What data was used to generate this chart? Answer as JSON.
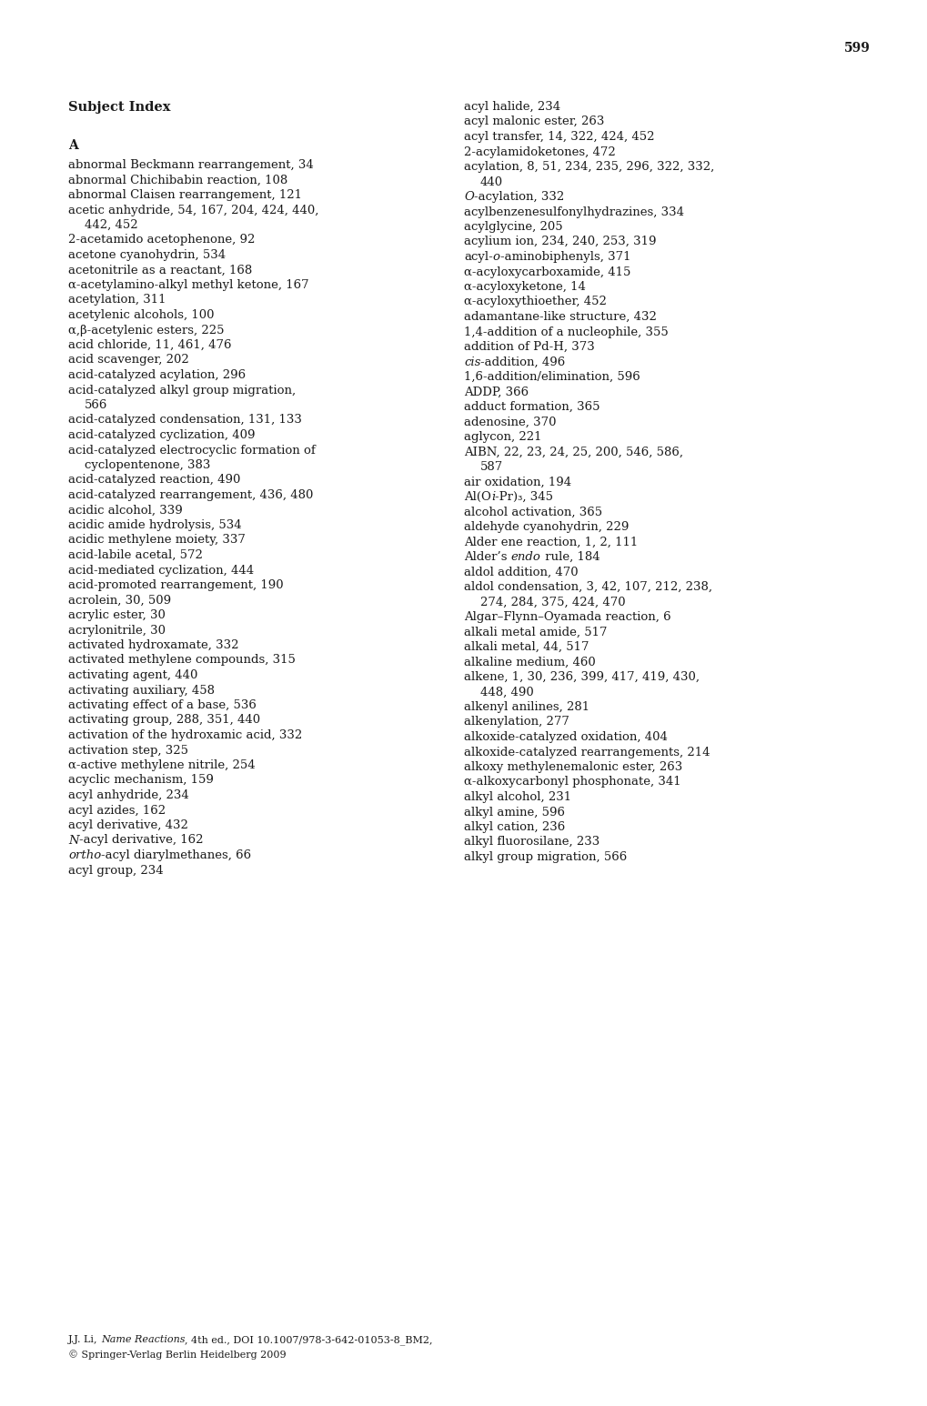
{
  "page_number": "599",
  "title": "Subject Index",
  "background_color": "#ffffff",
  "text_color": "#1a1a1a",
  "font_size": 9.5,
  "title_font_size": 10.5,
  "page_number_font_size": 10,
  "footer_font_size": 8.0,
  "left_column": [
    {
      "text": "A",
      "bold": true,
      "indent": false
    },
    {
      "text": "abnormal Beckmann rearrangement, 34",
      "bold": false,
      "indent": false
    },
    {
      "text": "abnormal Chichibabin reaction, 108",
      "bold": false,
      "indent": false
    },
    {
      "text": "abnormal Claisen rearrangement, 121",
      "bold": false,
      "indent": false
    },
    {
      "text": "acetic anhydride, 54, 167, 204, 424, 440,",
      "bold": false,
      "indent": false
    },
    {
      "text": "442, 452",
      "bold": false,
      "indent": true
    },
    {
      "text": "2-acetamido acetophenone, 92",
      "bold": false,
      "indent": false
    },
    {
      "text": "acetone cyanohydrin, 534",
      "bold": false,
      "indent": false
    },
    {
      "text": "acetonitrile as a reactant, 168",
      "bold": false,
      "indent": false
    },
    {
      "text": "α-acetylamino-alkyl methyl ketone, 167",
      "bold": false,
      "indent": false
    },
    {
      "text": "acetylation, 311",
      "bold": false,
      "indent": false
    },
    {
      "text": "acetylenic alcohols, 100",
      "bold": false,
      "indent": false
    },
    {
      "text": "α,β-acetylenic esters, 225",
      "bold": false,
      "indent": false
    },
    {
      "text": "acid chloride, 11, 461, 476",
      "bold": false,
      "indent": false
    },
    {
      "text": "acid scavenger, 202",
      "bold": false,
      "indent": false
    },
    {
      "text": "acid-catalyzed acylation, 296",
      "bold": false,
      "indent": false
    },
    {
      "text": "acid-catalyzed alkyl group migration,",
      "bold": false,
      "indent": false
    },
    {
      "text": "566",
      "bold": false,
      "indent": true
    },
    {
      "text": "acid-catalyzed condensation, 131, 133",
      "bold": false,
      "indent": false
    },
    {
      "text": "acid-catalyzed cyclization, 409",
      "bold": false,
      "indent": false
    },
    {
      "text": "acid-catalyzed electrocyclic formation of",
      "bold": false,
      "indent": false
    },
    {
      "text": "cyclopentenone, 383",
      "bold": false,
      "indent": true
    },
    {
      "text": "acid-catalyzed reaction, 490",
      "bold": false,
      "indent": false
    },
    {
      "text": "acid-catalyzed rearrangement, 436, 480",
      "bold": false,
      "indent": false
    },
    {
      "text": "acidic alcohol, 339",
      "bold": false,
      "indent": false
    },
    {
      "text": "acidic amide hydrolysis, 534",
      "bold": false,
      "indent": false
    },
    {
      "text": "acidic methylene moiety, 337",
      "bold": false,
      "indent": false
    },
    {
      "text": "acid-labile acetal, 572",
      "bold": false,
      "indent": false
    },
    {
      "text": "acid-mediated cyclization, 444",
      "bold": false,
      "indent": false
    },
    {
      "text": "acid-promoted rearrangement, 190",
      "bold": false,
      "indent": false
    },
    {
      "text": "acrolein, 30, 509",
      "bold": false,
      "indent": false
    },
    {
      "text": "acrylic ester, 30",
      "bold": false,
      "indent": false
    },
    {
      "text": "acrylonitrile, 30",
      "bold": false,
      "indent": false
    },
    {
      "text": "activated hydroxamate, 332",
      "bold": false,
      "indent": false
    },
    {
      "text": "activated methylene compounds, 315",
      "bold": false,
      "indent": false
    },
    {
      "text": "activating agent, 440",
      "bold": false,
      "indent": false
    },
    {
      "text": "activating auxiliary, 458",
      "bold": false,
      "indent": false
    },
    {
      "text": "activating effect of a base, 536",
      "bold": false,
      "indent": false
    },
    {
      "text": "activating group, 288, 351, 440",
      "bold": false,
      "indent": false
    },
    {
      "text": "activation of the hydroxamic acid, 332",
      "bold": false,
      "indent": false
    },
    {
      "text": "activation step, 325",
      "bold": false,
      "indent": false
    },
    {
      "text": "α-active methylene nitrile, 254",
      "bold": false,
      "indent": false
    },
    {
      "text": "acyclic mechanism, 159",
      "bold": false,
      "indent": false
    },
    {
      "text": "acyl anhydride, 234",
      "bold": false,
      "indent": false
    },
    {
      "text": "acyl azides, 162",
      "bold": false,
      "indent": false
    },
    {
      "text": "acyl derivative, 432",
      "bold": false,
      "indent": false
    },
    {
      "text": "N",
      "italic": true,
      "suffix": "-acyl derivative, 162",
      "indent": false
    },
    {
      "text": "ortho",
      "italic": true,
      "suffix": "-acyl diarylmethanes, 66",
      "indent": false
    },
    {
      "text": "acyl group, 234",
      "bold": false,
      "indent": false
    }
  ],
  "right_column": [
    {
      "text": "acyl halide, 234",
      "bold": false,
      "indent": false
    },
    {
      "text": "acyl malonic ester, 263",
      "bold": false,
      "indent": false
    },
    {
      "text": "acyl transfer, 14, 322, 424, 452",
      "bold": false,
      "indent": false
    },
    {
      "text": "2-acylamidoketones, 472",
      "bold": false,
      "indent": false
    },
    {
      "text": "acylation, 8, 51, 234, 235, 296, 322, 332,",
      "bold": false,
      "indent": false
    },
    {
      "text": "440",
      "bold": false,
      "indent": true
    },
    {
      "text": "O",
      "italic": true,
      "suffix": "-acylation, 332",
      "indent": false
    },
    {
      "text": "acylbenzenesulfonylhydrazines, 334",
      "bold": false,
      "indent": false
    },
    {
      "text": "acylglycine, 205",
      "bold": false,
      "indent": false
    },
    {
      "text": "acylium ion, 234, 240, 253, 319",
      "bold": false,
      "indent": false
    },
    {
      "text": "acyl-",
      "suffix_italic": "o",
      "suffix2": "-aminobiphenyls, 371",
      "indent": false
    },
    {
      "text": "α-acyloxycarboxamide, 415",
      "bold": false,
      "indent": false
    },
    {
      "text": "α-acyloxyketone, 14",
      "bold": false,
      "indent": false
    },
    {
      "text": "α-acyloxythioether, 452",
      "bold": false,
      "indent": false
    },
    {
      "text": "adamantane-like structure, 432",
      "bold": false,
      "indent": false
    },
    {
      "text": "1,4-addition of a nucleophile, 355",
      "bold": false,
      "indent": false
    },
    {
      "text": "addition of Pd-H, 373",
      "bold": false,
      "indent": false
    },
    {
      "text": "cis",
      "italic": true,
      "suffix": "-addition, 496",
      "indent": false
    },
    {
      "text": "1,6-addition/elimination, 596",
      "bold": false,
      "indent": false
    },
    {
      "text": "ADDP, 366",
      "bold": false,
      "indent": false
    },
    {
      "text": "adduct formation, 365",
      "bold": false,
      "indent": false
    },
    {
      "text": "adenosine, 370",
      "bold": false,
      "indent": false
    },
    {
      "text": "aglycon, 221",
      "bold": false,
      "indent": false
    },
    {
      "text": "AIBN, 22, 23, 24, 25, 200, 546, 586,",
      "bold": false,
      "indent": false
    },
    {
      "text": "587",
      "bold": false,
      "indent": true
    },
    {
      "text": "air oxidation, 194",
      "bold": false,
      "indent": false
    },
    {
      "text": "Al(O",
      "suffix_italic": "i",
      "suffix2": "-Pr)₃, 345",
      "indent": false
    },
    {
      "text": "alcohol activation, 365",
      "bold": false,
      "indent": false
    },
    {
      "text": "aldehyde cyanohydrin, 229",
      "bold": false,
      "indent": false
    },
    {
      "text": "Alder ene reaction, 1, 2, 111",
      "bold": false,
      "indent": false
    },
    {
      "text": "Alder’s ",
      "suffix_italic": "endo",
      "suffix2": " rule, 184",
      "indent": false
    },
    {
      "text": "aldol addition, 470",
      "bold": false,
      "indent": false
    },
    {
      "text": "aldol condensation, 3, 42, 107, 212, 238,",
      "bold": false,
      "indent": false
    },
    {
      "text": "274, 284, 375, 424, 470",
      "bold": false,
      "indent": true
    },
    {
      "text": "Algar–Flynn–Oyamada reaction, 6",
      "bold": false,
      "indent": false
    },
    {
      "text": "alkali metal amide, 517",
      "bold": false,
      "indent": false
    },
    {
      "text": "alkali metal, 44, 517",
      "bold": false,
      "indent": false
    },
    {
      "text": "alkaline medium, 460",
      "bold": false,
      "indent": false
    },
    {
      "text": "alkene, 1, 30, 236, 399, 417, 419, 430,",
      "bold": false,
      "indent": false
    },
    {
      "text": "448, 490",
      "bold": false,
      "indent": true
    },
    {
      "text": "alkenyl anilines, 281",
      "bold": false,
      "indent": false
    },
    {
      "text": "alkenylation, 277",
      "bold": false,
      "indent": false
    },
    {
      "text": "alkoxide-catalyzed oxidation, 404",
      "bold": false,
      "indent": false
    },
    {
      "text": "alkoxide-catalyzed rearrangements, 214",
      "bold": false,
      "indent": false
    },
    {
      "text": "alkoxy methylenemalonic ester, 263",
      "bold": false,
      "indent": false
    },
    {
      "text": "α-alkoxycarbonyl phosphonate, 341",
      "bold": false,
      "indent": false
    },
    {
      "text": "alkyl alcohol, 231",
      "bold": false,
      "indent": false
    },
    {
      "text": "alkyl amine, 596",
      "bold": false,
      "indent": false
    },
    {
      "text": "alkyl cation, 236",
      "bold": false,
      "indent": false
    },
    {
      "text": "alkyl fluorosilane, 233",
      "bold": false,
      "indent": false
    },
    {
      "text": "alkyl group migration, 566",
      "bold": false,
      "indent": false
    }
  ]
}
